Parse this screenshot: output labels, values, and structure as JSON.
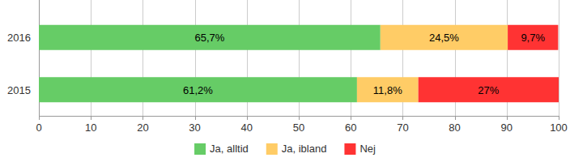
{
  "chart_data": {
    "type": "bar",
    "orientation": "horizontal",
    "stacked": true,
    "data_labels": true,
    "grid": true,
    "legend": "bottom",
    "categories": [
      "2016",
      "2015"
    ],
    "xlim": [
      0,
      100
    ],
    "xticks": [
      0,
      10,
      20,
      30,
      40,
      50,
      60,
      70,
      80,
      90,
      100
    ],
    "series": [
      {
        "name": "Ja, alltid",
        "color": "#66cc66",
        "values": [
          65.7,
          61.2
        ],
        "value_labels": [
          "65,7%",
          "61,2%"
        ]
      },
      {
        "name": "Ja, ibland",
        "color": "#ffcc66",
        "values": [
          24.5,
          11.8
        ],
        "value_labels": [
          "24,5%",
          "11,8%"
        ]
      },
      {
        "name": "Nej",
        "color": "#ff3333",
        "values": [
          9.7,
          27
        ],
        "value_labels": [
          "9,7%",
          "27%"
        ]
      }
    ]
  }
}
